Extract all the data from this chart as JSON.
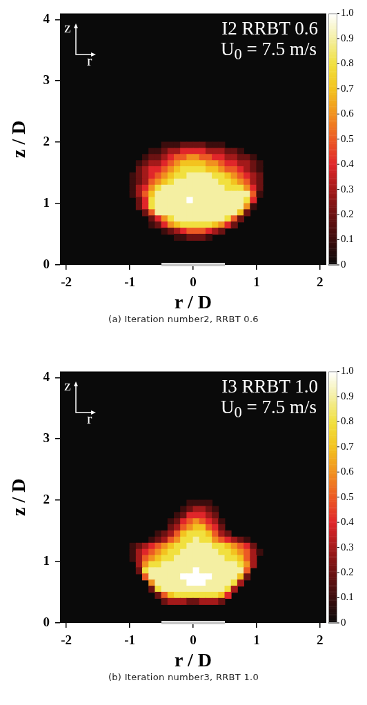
{
  "chart_data": [
    {
      "type": "scatter",
      "marker": "square",
      "xlabel": "r / D",
      "ylabel": "z / D",
      "annotations": [
        "I2 RRBT 0.6",
        "U$_{0}$ = 7.5 m/s",
        "z",
        "r",
        "(a) Iteration number2, RRBT 0.6"
      ],
      "xlim": [
        -2.1,
        2.1
      ],
      "ylim": [
        0,
        4.1
      ],
      "xticks": [
        -2,
        -1,
        0,
        1,
        2
      ],
      "yticks": [
        0,
        1,
        2,
        3,
        4
      ],
      "clim": [
        0,
        1
      ],
      "cticks": [
        0,
        0.1,
        0.2,
        0.3,
        0.4,
        0.5,
        0.6,
        0.7,
        0.8,
        0.9,
        {
          "value": 1,
          "label": "1.0"
        }
      ],
      "x": [
        -0.45,
        -0.35,
        -0.25,
        -0.15,
        -0.05,
        0.05,
        0.15,
        0.25,
        0.35,
        0.45,
        -0.65,
        -0.55,
        -0.45,
        -0.35,
        -0.25,
        -0.15,
        -0.05,
        0.05,
        0.15,
        0.25,
        0.35,
        0.45,
        0.55,
        0.65,
        0.75,
        -0.75,
        -0.65,
        -0.55,
        -0.45,
        -0.35,
        -0.25,
        -0.15,
        -0.05,
        0.05,
        0.15,
        0.25,
        0.35,
        0.45,
        0.55,
        0.65,
        0.75,
        0.85,
        0.95,
        -0.85,
        -0.75,
        -0.65,
        -0.55,
        -0.45,
        -0.35,
        -0.25,
        -0.15,
        -0.05,
        0.05,
        0.15,
        0.25,
        0.35,
        0.45,
        0.55,
        0.65,
        0.75,
        0.85,
        0.95,
        1.05,
        -0.85,
        -0.75,
        -0.65,
        -0.55,
        -0.45,
        -0.35,
        -0.25,
        -0.15,
        -0.05,
        0.05,
        0.15,
        0.25,
        0.35,
        0.45,
        0.55,
        0.65,
        0.75,
        0.85,
        0.95,
        1.05,
        -0.95,
        -0.85,
        -0.75,
        -0.65,
        -0.55,
        -0.45,
        -0.35,
        -0.25,
        -0.15,
        -0.05,
        0.05,
        0.15,
        0.25,
        0.35,
        0.45,
        0.55,
        0.65,
        0.75,
        0.85,
        0.95,
        1.05,
        -0.95,
        -0.85,
        -0.75,
        -0.65,
        -0.55,
        -0.45,
        -0.35,
        -0.25,
        -0.15,
        -0.05,
        0.05,
        0.15,
        0.25,
        0.35,
        0.45,
        0.55,
        0.65,
        0.75,
        0.85,
        0.95,
        1.05,
        -0.95,
        -0.85,
        -0.75,
        -0.65,
        -0.55,
        -0.45,
        -0.35,
        -0.25,
        -0.15,
        -0.05,
        0.05,
        0.15,
        0.25,
        0.35,
        0.45,
        0.55,
        0.65,
        0.75,
        0.85,
        0.95,
        1.05,
        -0.95,
        -0.85,
        -0.75,
        -0.65,
        -0.55,
        -0.45,
        -0.35,
        -0.25,
        -0.15,
        -0.05,
        0.05,
        0.15,
        0.25,
        0.35,
        0.45,
        0.55,
        0.65,
        0.75,
        0.85,
        0.95,
        1.05,
        -0.85,
        -0.75,
        -0.65,
        -0.55,
        -0.45,
        -0.35,
        -0.25,
        -0.15,
        -0.05,
        0.05,
        0.15,
        0.25,
        0.35,
        0.45,
        0.55,
        0.65,
        0.75,
        0.85,
        0.95,
        -0.85,
        -0.75,
        -0.65,
        -0.55,
        -0.45,
        -0.35,
        -0.25,
        -0.15,
        -0.05,
        0.05,
        0.15,
        0.25,
        0.35,
        0.45,
        0.55,
        0.65,
        0.75,
        0.85,
        0.95,
        -0.75,
        -0.65,
        -0.55,
        -0.45,
        -0.35,
        -0.25,
        -0.15,
        -0.05,
        0.05,
        0.15,
        0.25,
        0.35,
        0.45,
        0.55,
        0.65,
        0.75,
        0.85,
        -0.65,
        -0.55,
        -0.45,
        -0.35,
        -0.25,
        -0.15,
        -0.05,
        0.05,
        0.15,
        0.25,
        0.35,
        0.45,
        0.55,
        0.65,
        0.75,
        -0.65,
        -0.55,
        -0.45,
        -0.35,
        -0.25,
        -0.15,
        -0.05,
        0.05,
        0.15,
        0.25,
        0.35,
        0.45,
        0.55,
        0.65,
        -0.45,
        -0.35,
        -0.25,
        -0.15,
        -0.05,
        0.05,
        0.15,
        0.25,
        0.35,
        0.45,
        -0.25,
        -0.15,
        -0.05,
        0.05,
        0.15,
        0.25
      ],
      "values": [
        1.95,
        1.95,
        1.95,
        1.95,
        1.95,
        1.95,
        1.95,
        1.95,
        1.95,
        1.95,
        1.85,
        1.85,
        1.85,
        1.85,
        1.85,
        1.85,
        1.85,
        1.85,
        1.85,
        1.85,
        1.85,
        1.85,
        1.85,
        1.85,
        1.85,
        1.75,
        1.75,
        1.75,
        1.75,
        1.75,
        1.75,
        1.75,
        1.75,
        1.75,
        1.75,
        1.75,
        1.75,
        1.75,
        1.75,
        1.75,
        1.75,
        1.75,
        1.75,
        1.65,
        1.65,
        1.65,
        1.65,
        1.65,
        1.65,
        1.65,
        1.65,
        1.65,
        1.65,
        1.65,
        1.65,
        1.65,
        1.65,
        1.65,
        1.65,
        1.65,
        1.65,
        1.65,
        1.65,
        1.55,
        1.55,
        1.55,
        1.55,
        1.55,
        1.55,
        1.55,
        1.55,
        1.55,
        1.55,
        1.55,
        1.55,
        1.55,
        1.55,
        1.55,
        1.55,
        1.55,
        1.55,
        1.55,
        1.55,
        1.45,
        1.45,
        1.45,
        1.45,
        1.45,
        1.45,
        1.45,
        1.45,
        1.45,
        1.45,
        1.45,
        1.45,
        1.45,
        1.45,
        1.45,
        1.45,
        1.45,
        1.45,
        1.45,
        1.45,
        1.45,
        1.35,
        1.35,
        1.35,
        1.35,
        1.35,
        1.35,
        1.35,
        1.35,
        1.35,
        1.35,
        1.35,
        1.35,
        1.35,
        1.35,
        1.35,
        1.35,
        1.35,
        1.35,
        1.35,
        1.35,
        1.35,
        1.25,
        1.25,
        1.25,
        1.25,
        1.25,
        1.25,
        1.25,
        1.25,
        1.25,
        1.25,
        1.25,
        1.25,
        1.25,
        1.25,
        1.25,
        1.25,
        1.25,
        1.25,
        1.25,
        1.25,
        1.25,
        1.15,
        1.15,
        1.15,
        1.15,
        1.15,
        1.15,
        1.15,
        1.15,
        1.15,
        1.15,
        1.15,
        1.15,
        1.15,
        1.15,
        1.15,
        1.15,
        1.15,
        1.15,
        1.15,
        1.15,
        1.15,
        1.05,
        1.05,
        1.05,
        1.05,
        1.05,
        1.05,
        1.05,
        1.05,
        1.05,
        1.05,
        1.05,
        1.05,
        1.05,
        1.05,
        1.05,
        1.05,
        1.05,
        1.05,
        1.05,
        0.95,
        0.95,
        0.95,
        0.95,
        0.95,
        0.95,
        0.95,
        0.95,
        0.95,
        0.95,
        0.95,
        0.95,
        0.95,
        0.95,
        0.95,
        0.95,
        0.95,
        0.95,
        0.95,
        0.85,
        0.85,
        0.85,
        0.85,
        0.85,
        0.85,
        0.85,
        0.85,
        0.85,
        0.85,
        0.85,
        0.85,
        0.85,
        0.85,
        0.85,
        0.85,
        0.85,
        0.75,
        0.75,
        0.75,
        0.75,
        0.75,
        0.75,
        0.75,
        0.75,
        0.75,
        0.75,
        0.75,
        0.75,
        0.75,
        0.75,
        0.75,
        0.65,
        0.65,
        0.65,
        0.65,
        0.65,
        0.65,
        0.65,
        0.65,
        0.65,
        0.65,
        0.65,
        0.65,
        0.65,
        0.65,
        0.55,
        0.55,
        0.55,
        0.55,
        0.55,
        0.55,
        0.55,
        0.55,
        0.55,
        0.55,
        0.45,
        0.45,
        0.45,
        0.45,
        0.45,
        0.45
      ],
      "cvalues": [
        0.1,
        0.1,
        0.1,
        0.2,
        0.2,
        0.2,
        0.2,
        0.1,
        0.1,
        0.1,
        0.1,
        0.1,
        0.2,
        0.3,
        0.3,
        0.4,
        0.4,
        0.4,
        0.4,
        0.3,
        0.3,
        0.3,
        0.2,
        0.2,
        0.1,
        0.1,
        0.2,
        0.2,
        0.3,
        0.4,
        0.5,
        0.5,
        0.6,
        0.6,
        0.5,
        0.5,
        0.4,
        0.4,
        0.3,
        0.3,
        0.2,
        0.2,
        0.1,
        0.1,
        0.2,
        0.3,
        0.3,
        0.4,
        0.5,
        0.6,
        0.7,
        0.7,
        0.7,
        0.7,
        0.6,
        0.6,
        0.5,
        0.4,
        0.4,
        0.3,
        0.3,
        0.2,
        0.1,
        0.2,
        0.3,
        0.4,
        0.4,
        0.5,
        0.6,
        0.7,
        0.8,
        0.8,
        0.8,
        0.8,
        0.7,
        0.7,
        0.6,
        0.5,
        0.5,
        0.4,
        0.3,
        0.2,
        0.1,
        0.1,
        0.2,
        0.3,
        0.4,
        0.5,
        0.6,
        0.7,
        0.8,
        0.8,
        0.9,
        0.9,
        0.9,
        0.9,
        0.8,
        0.8,
        0.7,
        0.6,
        0.5,
        0.4,
        0.3,
        0.2,
        0.1,
        0.2,
        0.3,
        0.5,
        0.6,
        0.7,
        0.8,
        0.9,
        0.9,
        0.9,
        0.9,
        0.9,
        0.9,
        0.9,
        0.8,
        0.8,
        0.7,
        0.6,
        0.5,
        0.3,
        0.2,
        0.1,
        0.3,
        0.4,
        0.6,
        0.8,
        0.9,
        0.9,
        0.9,
        0.9,
        0.9,
        0.9,
        0.9,
        0.9,
        0.9,
        0.9,
        0.8,
        0.8,
        0.8,
        0.6,
        0.4,
        0.2,
        0.1,
        0.3,
        0.5,
        0.7,
        0.9,
        0.9,
        0.9,
        0.9,
        0.9,
        0.9,
        0.9,
        0.9,
        0.9,
        0.9,
        0.9,
        0.9,
        0.9,
        0.9,
        0.9,
        0.5,
        0.1,
        0.2,
        0.4,
        0.8,
        0.9,
        0.9,
        0.9,
        0.9,
        0.9,
        1,
        0.9,
        0.9,
        0.9,
        0.9,
        0.9,
        0.9,
        0.9,
        0.9,
        0.8,
        0.4,
        0.2,
        0.4,
        0.8,
        0.9,
        0.9,
        0.9,
        0.9,
        0.9,
        0.9,
        0.9,
        0.9,
        0.9,
        0.9,
        0.9,
        0.9,
        0.9,
        0.9,
        0.6,
        0.1,
        0.2,
        0.5,
        0.9,
        0.9,
        0.9,
        0.9,
        0.9,
        0.9,
        0.9,
        0.9,
        0.9,
        0.9,
        0.9,
        0.9,
        0.9,
        0.7,
        0.2,
        0.2,
        0.4,
        0.6,
        0.8,
        0.9,
        0.9,
        0.9,
        0.9,
        0.9,
        0.9,
        0.9,
        0.9,
        0.8,
        0.5,
        0.2,
        0.1,
        0.2,
        0.4,
        0.6,
        0.7,
        0.8,
        0.8,
        0.8,
        0.8,
        0.8,
        0.7,
        0.6,
        0.4,
        0.2,
        0.1,
        0.2,
        0.3,
        0.4,
        0.5,
        0.5,
        0.5,
        0.4,
        0.3,
        0.2,
        0.1,
        0.1,
        0.2,
        0.2,
        0.2,
        0.1
      ]
    },
    {
      "type": "scatter",
      "marker": "square",
      "xlabel": "r / D",
      "ylabel": "z / D",
      "annotations": [
        "I3 RRBT 1.0",
        "U$_{0}$ = 7.5 m/s",
        "z",
        "r",
        "(b) Iteration number3, RRBT 1.0"
      ],
      "xlim": [
        -2.1,
        2.1
      ],
      "ylim": [
        0,
        4.1
      ],
      "xticks": [
        -2,
        -1,
        0,
        1,
        2
      ],
      "yticks": [
        0,
        1,
        2,
        3,
        4
      ],
      "clim": [
        0,
        1
      ],
      "cticks": [
        0,
        0.1,
        0.2,
        0.3,
        0.4,
        0.5,
        0.6,
        0.7,
        0.8,
        0.9,
        {
          "value": 1,
          "label": "1.0"
        }
      ],
      "x": [
        -0.05,
        0.05,
        0.15,
        0.25,
        -0.15,
        -0.05,
        0.05,
        0.15,
        0.25,
        0.35,
        -0.25,
        -0.15,
        -0.05,
        0.05,
        0.15,
        0.25,
        0.35,
        -0.35,
        -0.25,
        -0.15,
        -0.05,
        0.05,
        0.15,
        0.25,
        0.35,
        0.45,
        -0.35,
        -0.25,
        -0.15,
        -0.05,
        0.05,
        0.15,
        0.25,
        0.35,
        0.45,
        -0.55,
        -0.45,
        -0.35,
        -0.25,
        -0.15,
        -0.05,
        0.05,
        0.15,
        0.25,
        0.35,
        0.45,
        0.55,
        -0.65,
        -0.55,
        -0.45,
        -0.35,
        -0.25,
        -0.15,
        -0.05,
        0.05,
        0.15,
        0.25,
        0.35,
        0.45,
        0.55,
        0.65,
        0.75,
        0.85,
        -0.95,
        -0.85,
        -0.75,
        -0.65,
        -0.55,
        -0.45,
        -0.35,
        -0.25,
        -0.15,
        -0.05,
        0.05,
        0.15,
        0.25,
        0.35,
        0.45,
        0.55,
        0.65,
        0.75,
        0.85,
        0.95,
        -0.95,
        -0.85,
        -0.75,
        -0.65,
        -0.55,
        -0.45,
        -0.35,
        -0.25,
        -0.15,
        -0.05,
        0.05,
        0.15,
        0.25,
        0.35,
        0.45,
        0.55,
        0.65,
        0.75,
        0.85,
        0.95,
        1.05,
        -0.95,
        -0.85,
        -0.75,
        -0.65,
        -0.55,
        -0.45,
        -0.35,
        -0.25,
        -0.15,
        -0.05,
        0.05,
        0.15,
        0.25,
        0.35,
        0.45,
        0.55,
        0.65,
        0.75,
        0.85,
        0.95,
        -0.85,
        -0.75,
        -0.65,
        -0.55,
        -0.45,
        -0.35,
        -0.25,
        -0.15,
        -0.05,
        0.05,
        0.15,
        0.25,
        0.35,
        0.45,
        0.55,
        0.65,
        0.75,
        0.85,
        0.95,
        -0.85,
        -0.75,
        -0.65,
        -0.55,
        -0.45,
        -0.35,
        -0.25,
        -0.15,
        -0.05,
        0.05,
        0.15,
        0.25,
        0.35,
        0.45,
        0.55,
        0.65,
        0.75,
        0.85,
        -0.75,
        -0.65,
        -0.55,
        -0.45,
        -0.35,
        -0.25,
        -0.15,
        -0.05,
        0.05,
        0.15,
        0.25,
        0.35,
        0.45,
        0.55,
        0.65,
        0.75,
        0.85,
        -0.65,
        -0.55,
        -0.45,
        -0.35,
        -0.25,
        -0.15,
        -0.05,
        0.05,
        0.15,
        0.25,
        0.35,
        0.45,
        0.55,
        0.65,
        0.75,
        -0.65,
        -0.55,
        -0.45,
        -0.35,
        -0.25,
        -0.15,
        -0.05,
        0.05,
        0.15,
        0.25,
        0.35,
        0.45,
        0.55,
        0.65,
        -0.55,
        -0.45,
        -0.35,
        -0.25,
        -0.15,
        -0.05,
        0.05,
        0.15,
        0.25,
        0.35,
        0.45,
        0.55,
        -0.45,
        -0.35,
        -0.25,
        -0.15,
        -0.05,
        0.05,
        0.15,
        0.25,
        0.35,
        0.45
      ],
      "values": [
        1.95,
        1.95,
        1.95,
        1.95,
        1.85,
        1.85,
        1.85,
        1.85,
        1.85,
        1.85,
        1.75,
        1.75,
        1.75,
        1.75,
        1.75,
        1.75,
        1.75,
        1.65,
        1.65,
        1.65,
        1.65,
        1.65,
        1.65,
        1.65,
        1.65,
        1.65,
        1.55,
        1.55,
        1.55,
        1.55,
        1.55,
        1.55,
        1.55,
        1.55,
        1.55,
        1.45,
        1.45,
        1.45,
        1.45,
        1.45,
        1.45,
        1.45,
        1.45,
        1.45,
        1.45,
        1.45,
        1.45,
        1.35,
        1.35,
        1.35,
        1.35,
        1.35,
        1.35,
        1.35,
        1.35,
        1.35,
        1.35,
        1.35,
        1.35,
        1.35,
        1.35,
        1.35,
        1.35,
        1.25,
        1.25,
        1.25,
        1.25,
        1.25,
        1.25,
        1.25,
        1.25,
        1.25,
        1.25,
        1.25,
        1.25,
        1.25,
        1.25,
        1.25,
        1.25,
        1.25,
        1.25,
        1.25,
        1.25,
        1.15,
        1.15,
        1.15,
        1.15,
        1.15,
        1.15,
        1.15,
        1.15,
        1.15,
        1.15,
        1.15,
        1.15,
        1.15,
        1.15,
        1.15,
        1.15,
        1.15,
        1.15,
        1.15,
        1.15,
        1.15,
        1.05,
        1.05,
        1.05,
        1.05,
        1.05,
        1.05,
        1.05,
        1.05,
        1.05,
        1.05,
        1.05,
        1.05,
        1.05,
        1.05,
        1.05,
        1.05,
        1.05,
        1.05,
        1.05,
        1.05,
        0.95,
        0.95,
        0.95,
        0.95,
        0.95,
        0.95,
        0.95,
        0.95,
        0.95,
        0.95,
        0.95,
        0.95,
        0.95,
        0.95,
        0.95,
        0.95,
        0.95,
        0.95,
        0.95,
        0.85,
        0.85,
        0.85,
        0.85,
        0.85,
        0.85,
        0.85,
        0.85,
        0.85,
        0.85,
        0.85,
        0.85,
        0.85,
        0.85,
        0.85,
        0.85,
        0.85,
        0.85,
        0.75,
        0.75,
        0.75,
        0.75,
        0.75,
        0.75,
        0.75,
        0.75,
        0.75,
        0.75,
        0.75,
        0.75,
        0.75,
        0.75,
        0.75,
        0.75,
        0.75,
        0.65,
        0.65,
        0.65,
        0.65,
        0.65,
        0.65,
        0.65,
        0.65,
        0.65,
        0.65,
        0.65,
        0.65,
        0.65,
        0.65,
        0.65,
        0.55,
        0.55,
        0.55,
        0.55,
        0.55,
        0.55,
        0.55,
        0.55,
        0.55,
        0.55,
        0.55,
        0.55,
        0.55,
        0.55,
        0.45,
        0.45,
        0.45,
        0.45,
        0.45,
        0.45,
        0.45,
        0.45,
        0.45,
        0.45,
        0.45,
        0.45,
        0.35,
        0.35,
        0.35,
        0.35,
        0.35,
        0.35,
        0.35,
        0.35,
        0.35,
        0.35
      ],
      "cvalues": [
        0.1,
        0.1,
        0.1,
        0.1,
        0.1,
        0.2,
        0.3,
        0.3,
        0.2,
        0.1,
        0.1,
        0.2,
        0.4,
        0.4,
        0.4,
        0.3,
        0.2,
        0.1,
        0.2,
        0.4,
        0.5,
        0.6,
        0.5,
        0.4,
        0.3,
        0.1,
        0.2,
        0.3,
        0.5,
        0.6,
        0.7,
        0.7,
        0.5,
        0.4,
        0.2,
        0.1,
        0.2,
        0.3,
        0.5,
        0.7,
        0.8,
        0.8,
        0.8,
        0.7,
        0.5,
        0.3,
        0.2,
        0.1,
        0.2,
        0.3,
        0.5,
        0.6,
        0.8,
        0.8,
        0.9,
        0.8,
        0.8,
        0.6,
        0.5,
        0.4,
        0.3,
        0.2,
        0.1,
        0.1,
        0.2,
        0.3,
        0.4,
        0.5,
        0.6,
        0.7,
        0.8,
        0.8,
        0.9,
        0.9,
        0.9,
        0.9,
        0.8,
        0.8,
        0.7,
        0.6,
        0.5,
        0.4,
        0.2,
        0.1,
        0.3,
        0.4,
        0.5,
        0.6,
        0.7,
        0.8,
        0.8,
        0.9,
        0.9,
        0.9,
        0.9,
        0.9,
        0.9,
        0.8,
        0.8,
        0.7,
        0.6,
        0.5,
        0.3,
        0.1,
        0.1,
        0.3,
        0.5,
        0.6,
        0.7,
        0.8,
        0.8,
        0.9,
        0.9,
        0.9,
        0.9,
        0.9,
        0.9,
        0.9,
        0.9,
        0.8,
        0.8,
        0.7,
        0.5,
        0.3,
        0.3,
        0.6,
        0.8,
        0.8,
        0.9,
        0.9,
        0.9,
        0.9,
        0.9,
        0.9,
        0.9,
        0.9,
        0.9,
        0.9,
        0.9,
        0.9,
        0.8,
        0.6,
        0.3,
        0.2,
        0.8,
        0.9,
        0.9,
        0.9,
        0.9,
        0.9,
        0.9,
        0.9,
        1,
        0.9,
        0.9,
        0.9,
        0.9,
        0.9,
        0.9,
        0.9,
        0.5,
        0.5,
        0.9,
        0.9,
        0.9,
        0.9,
        0.9,
        1,
        1,
        1,
        1,
        1,
        0.9,
        0.9,
        0.9,
        0.9,
        0.7,
        0.2,
        0.6,
        0.9,
        0.9,
        0.9,
        0.9,
        0.9,
        1,
        1,
        1,
        0.9,
        0.9,
        0.9,
        0.9,
        0.8,
        0.3,
        0.2,
        0.8,
        0.9,
        0.9,
        0.9,
        0.9,
        0.9,
        0.9,
        0.9,
        0.9,
        0.9,
        0.9,
        0.8,
        0.3,
        0.2,
        0.5,
        0.7,
        0.8,
        0.8,
        0.8,
        0.8,
        0.8,
        0.8,
        0.8,
        0.7,
        0.4,
        0.2,
        0.3,
        0.3,
        0.3,
        0.2,
        0.2,
        0.3,
        0.3,
        0.3,
        0.2
      ]
    }
  ]
}
